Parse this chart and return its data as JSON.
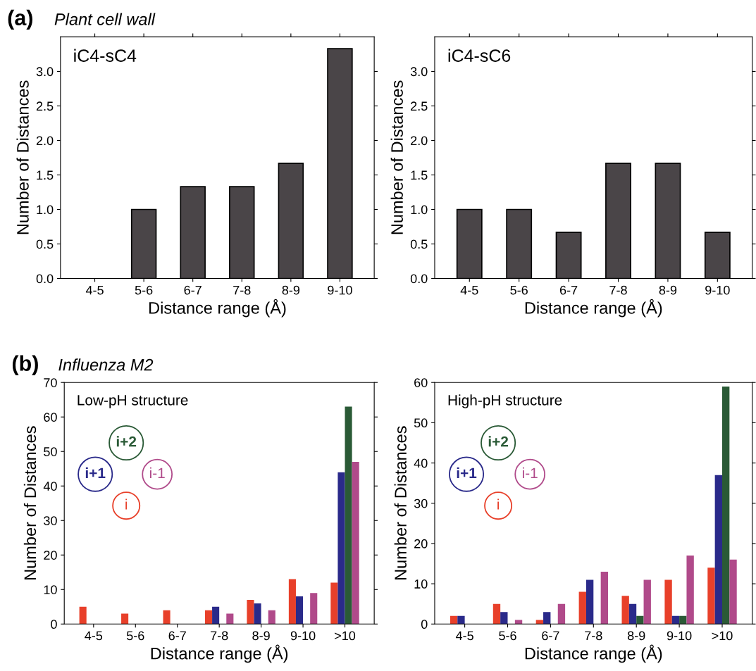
{
  "chart_data": [
    {
      "type": "bar",
      "title": "(a)",
      "subtitle": "Plant cell wall",
      "annotations": [
        "iC4-sC4"
      ],
      "xlabel": "Distance range (Å)",
      "ylabel": "Number of Distances",
      "categories": [
        "4-5",
        "5-6",
        "6-7",
        "7-8",
        "8-9",
        "9-10"
      ],
      "series": [
        {
          "color": "#4a4548",
          "values": [
            0,
            1.0,
            1.33,
            1.33,
            1.67,
            3.33
          ]
        }
      ],
      "ylim": [
        0,
        3.5
      ],
      "yticks": [
        {
          "value": 0,
          "label": "0.0"
        },
        0.5,
        {
          "value": 1,
          "label": "1.0"
        },
        1.5,
        {
          "value": 2,
          "label": "2.0"
        },
        2.5,
        {
          "value": 3,
          "label": "3.0"
        }
      ],
      "grid": false,
      "legend": false
    },
    {
      "type": "bar",
      "annotations": [
        "iC4-sC6"
      ],
      "xlabel": "Distance range (Å)",
      "ylabel": "Number of Distances",
      "categories": [
        "4-5",
        "5-6",
        "6-7",
        "7-8",
        "8-9",
        "9-10"
      ],
      "series": [
        {
          "color": "#4a4548",
          "values": [
            1.0,
            1.0,
            0.67,
            1.67,
            1.67,
            0.67
          ]
        }
      ],
      "ylim": [
        0,
        3.5
      ],
      "yticks": [
        {
          "value": 0,
          "label": "0.0"
        },
        0.5,
        {
          "value": 1,
          "label": "1.0"
        },
        1.5,
        {
          "value": 2,
          "label": "2.0"
        },
        2.5,
        {
          "value": 3,
          "label": "3.0"
        }
      ],
      "grid": false,
      "legend": false
    },
    {
      "type": "bar",
      "title": "(b)",
      "subtitle": "Influenza M2",
      "annotations": [
        "Low-pH structure"
      ],
      "xlabel": "Distance range (Å)",
      "ylabel": "Number of Distances",
      "categories": [
        "4-5",
        "5-6",
        "6-7",
        "7-8",
        "8-9",
        "9-10",
        ">10"
      ],
      "series": [
        {
          "name": "i",
          "color": "#e8402a",
          "values": [
            5,
            3,
            4,
            4,
            7,
            13,
            12
          ]
        },
        {
          "name": "i+1",
          "color": "#2a2a8a",
          "values": [
            0,
            0,
            0,
            5,
            6,
            8,
            44
          ]
        },
        {
          "name": "i+2",
          "color": "#2a5a36",
          "values": [
            0,
            0,
            0,
            0,
            0,
            0,
            63
          ]
        },
        {
          "name": "i-1",
          "color": "#b04a8a",
          "values": [
            0,
            0,
            0,
            3,
            4,
            9,
            47
          ]
        }
      ],
      "ylim": [
        0,
        70
      ],
      "yticks": [
        0,
        10,
        20,
        30,
        40,
        50,
        60,
        70
      ],
      "grid": false,
      "legend": "top left"
    },
    {
      "type": "bar",
      "annotations": [
        "High-pH structure"
      ],
      "xlabel": "Distance range (Å)",
      "ylabel": "Number of Distances",
      "categories": [
        "4-5",
        "5-6",
        "6-7",
        "7-8",
        "8-9",
        "9-10",
        ">10"
      ],
      "series": [
        {
          "name": "i",
          "color": "#e8402a",
          "values": [
            2,
            5,
            1,
            8,
            7,
            11,
            14
          ]
        },
        {
          "name": "i+1",
          "color": "#2a2a8a",
          "values": [
            2,
            3,
            3,
            11,
            5,
            2,
            37
          ]
        },
        {
          "name": "i+2",
          "color": "#2a5a36",
          "values": [
            0,
            0,
            0,
            0,
            2,
            2,
            59
          ]
        },
        {
          "name": "i-1",
          "color": "#b04a8a",
          "values": [
            0,
            1,
            5,
            13,
            11,
            17,
            16
          ]
        }
      ],
      "ylim": [
        0,
        60
      ],
      "yticks": [
        0,
        10,
        20,
        30,
        40,
        50,
        60
      ],
      "grid": false,
      "legend": "top left"
    }
  ]
}
